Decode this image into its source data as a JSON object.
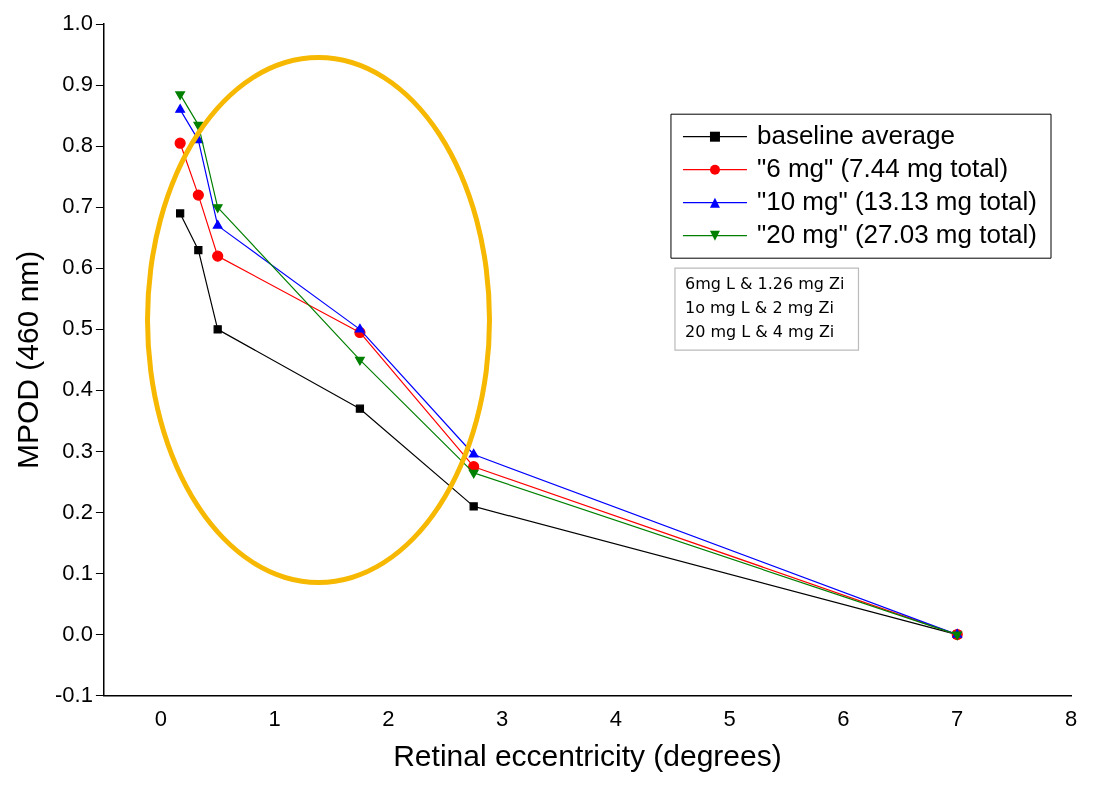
{
  "chart_data": {
    "type": "line",
    "xlabel": "Retinal eccentricity (degrees)",
    "ylabel": "MPOD (460 nm)",
    "x": [
      0.17,
      0.33,
      0.5,
      1.75,
      2.75,
      7
    ],
    "series": [
      {
        "name": "baseline average",
        "color": "#000000",
        "marker": "square",
        "values": [
          0.69,
          0.63,
          0.5,
          0.37,
          0.21,
          0
        ]
      },
      {
        "name": "\"6 mg\" (7.44 mg total)",
        "color": "#ff0000",
        "marker": "circle",
        "values": [
          0.805,
          0.72,
          0.62,
          0.495,
          0.275,
          0
        ]
      },
      {
        "name": "\"10 mg\" (13.13 mg total)",
        "color": "#0000ff",
        "marker": "triangle",
        "values": [
          0.86,
          0.81,
          0.67,
          0.5,
          0.295,
          0
        ]
      },
      {
        "name": "\"20 mg\" (27.03 mg total)",
        "color": "#008000",
        "marker": "triangle-down",
        "values": [
          0.885,
          0.835,
          0.7,
          0.45,
          0.265,
          0
        ]
      }
    ],
    "xlim": [
      -0.5,
      8
    ],
    "xticks": [
      0,
      1,
      2,
      3,
      4,
      5,
      6,
      7,
      8
    ],
    "ylim": [
      -0.1,
      1
    ],
    "yticks": [
      -0.1,
      {
        "value": 0,
        "label": "0.0"
      },
      0.1,
      0.2,
      0.3,
      0.4,
      0.5,
      0.6,
      0.7,
      0.8,
      0.9,
      {
        "value": 1,
        "label": "1.0"
      }
    ],
    "grid": false,
    "legend": "top right",
    "annotations": [
      "6mg L & 1.26 mg Zi",
      "1o mg L & 2 mg Zi",
      "20 mg L & 4 mg Zi"
    ]
  }
}
